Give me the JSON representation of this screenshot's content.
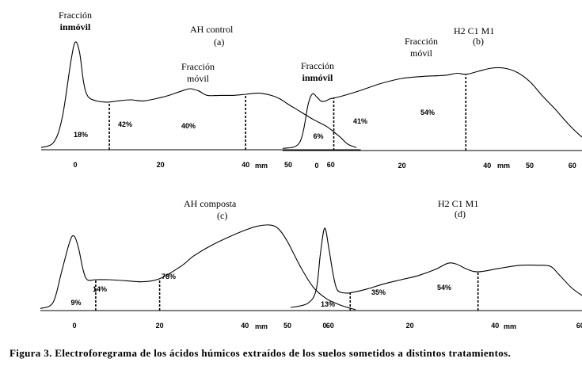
{
  "caption": "Figura 3. Electroforegrama de los ácidos húmicos extraídos de los suelos sometidos a distintos tratamientos.",
  "chart_data": [
    {
      "type": "area",
      "id": "a",
      "title": "AH control",
      "panel_label": "(a)",
      "xlabel": "mm",
      "xticks": [
        0,
        20,
        40,
        50,
        60
      ],
      "xlim": [
        -8,
        67
      ],
      "dividers": [
        8,
        40
      ],
      "percentages": [
        "18%",
        "42%",
        "40%"
      ],
      "annotations": [
        {
          "lines": [
            "Fracción",
            "inmóvil"
          ],
          "bold_line": 1
        },
        {
          "lines": [
            "Fracción",
            "móvil"
          ],
          "bold_line": -1
        }
      ],
      "curve": {
        "x": [
          -8,
          -5,
          -3,
          -1,
          0,
          1,
          2,
          3,
          5,
          7,
          8,
          10,
          13,
          16,
          20,
          22,
          25,
          27,
          29,
          31,
          34,
          37,
          40,
          43,
          46,
          48,
          50,
          53,
          56,
          59,
          62,
          64,
          66
        ],
        "y": [
          0.02,
          0.07,
          0.3,
          0.8,
          0.97,
          0.88,
          0.6,
          0.48,
          0.44,
          0.43,
          0.43,
          0.44,
          0.45,
          0.44,
          0.47,
          0.49,
          0.53,
          0.55,
          0.53,
          0.49,
          0.49,
          0.49,
          0.5,
          0.51,
          0.49,
          0.46,
          0.41,
          0.34,
          0.27,
          0.21,
          0.12,
          0.05,
          0.02
        ]
      }
    },
    {
      "type": "area",
      "id": "b",
      "title": "H2 C1 M1",
      "panel_label": "(b)",
      "xlabel": "mm",
      "xticks": [
        0,
        20,
        40,
        50,
        60
      ],
      "xlim": [
        -8,
        67
      ],
      "dividers": [
        4,
        35
      ],
      "percentages": [
        "6%",
        "41%",
        "54%"
      ],
      "annotations": [
        {
          "lines": [
            "Fracción",
            "inmóvil"
          ],
          "bold_line": 1
        },
        {
          "lines": [
            "Fracción",
            "móvil"
          ],
          "bold_line": -1
        }
      ],
      "curve": {
        "x": [
          -8,
          -4,
          -2,
          -1,
          0,
          1,
          2,
          3,
          4,
          6,
          10,
          15,
          20,
          25,
          30,
          33,
          35,
          38,
          41,
          44,
          47,
          50,
          53,
          56,
          59,
          62,
          65,
          66
        ],
        "y": [
          0.02,
          0.08,
          0.45,
          0.55,
          0.52,
          0.48,
          0.48,
          0.5,
          0.51,
          0.53,
          0.58,
          0.65,
          0.7,
          0.72,
          0.73,
          0.75,
          0.74,
          0.77,
          0.8,
          0.8,
          0.76,
          0.67,
          0.53,
          0.4,
          0.26,
          0.14,
          0.05,
          0.03
        ]
      }
    },
    {
      "type": "area",
      "id": "c",
      "title": "AH composta",
      "panel_label": "(c)",
      "xlabel": "mm",
      "xticks": [
        0,
        20,
        40,
        50,
        60
      ],
      "xlim": [
        -8,
        67
      ],
      "dividers": [
        5,
        20
      ],
      "percentages": [
        "9%",
        "14%",
        "78%"
      ],
      "annotations": [],
      "curve": {
        "x": [
          -8,
          -5,
          -3,
          -1,
          0,
          1,
          2,
          3,
          5,
          8,
          12,
          16,
          20,
          25,
          28,
          32,
          36,
          40,
          43,
          46,
          48,
          50,
          53,
          56,
          59,
          62,
          65,
          66
        ],
        "y": [
          0.02,
          0.08,
          0.38,
          0.68,
          0.72,
          0.6,
          0.4,
          0.3,
          0.3,
          0.3,
          0.29,
          0.28,
          0.31,
          0.43,
          0.53,
          0.63,
          0.71,
          0.78,
          0.82,
          0.83,
          0.79,
          0.67,
          0.43,
          0.23,
          0.12,
          0.06,
          0.02,
          0.01
        ]
      }
    },
    {
      "type": "area",
      "id": "d",
      "title": "H2 C1 M1",
      "panel_label": "(d)",
      "xlabel": "mm",
      "xticks": [
        0,
        20,
        40,
        60
      ],
      "xlim": [
        -8,
        67
      ],
      "dividers": [
        6,
        36
      ],
      "percentages": [
        "13%",
        "35%",
        "54%"
      ],
      "annotations": [],
      "curve": {
        "x": [
          -8,
          -4,
          -2,
          -1,
          0,
          1,
          2,
          3,
          5,
          7,
          10,
          14,
          18,
          22,
          26,
          29,
          31,
          33,
          35,
          37,
          41,
          46,
          50,
          53,
          55,
          58,
          61,
          63,
          66
        ],
        "y": [
          0.03,
          0.07,
          0.2,
          0.55,
          0.8,
          0.6,
          0.35,
          0.2,
          0.17,
          0.18,
          0.21,
          0.26,
          0.3,
          0.34,
          0.4,
          0.46,
          0.45,
          0.41,
          0.38,
          0.38,
          0.41,
          0.44,
          0.44,
          0.43,
          0.35,
          0.22,
          0.13,
          0.07,
          0.04
        ]
      }
    }
  ]
}
